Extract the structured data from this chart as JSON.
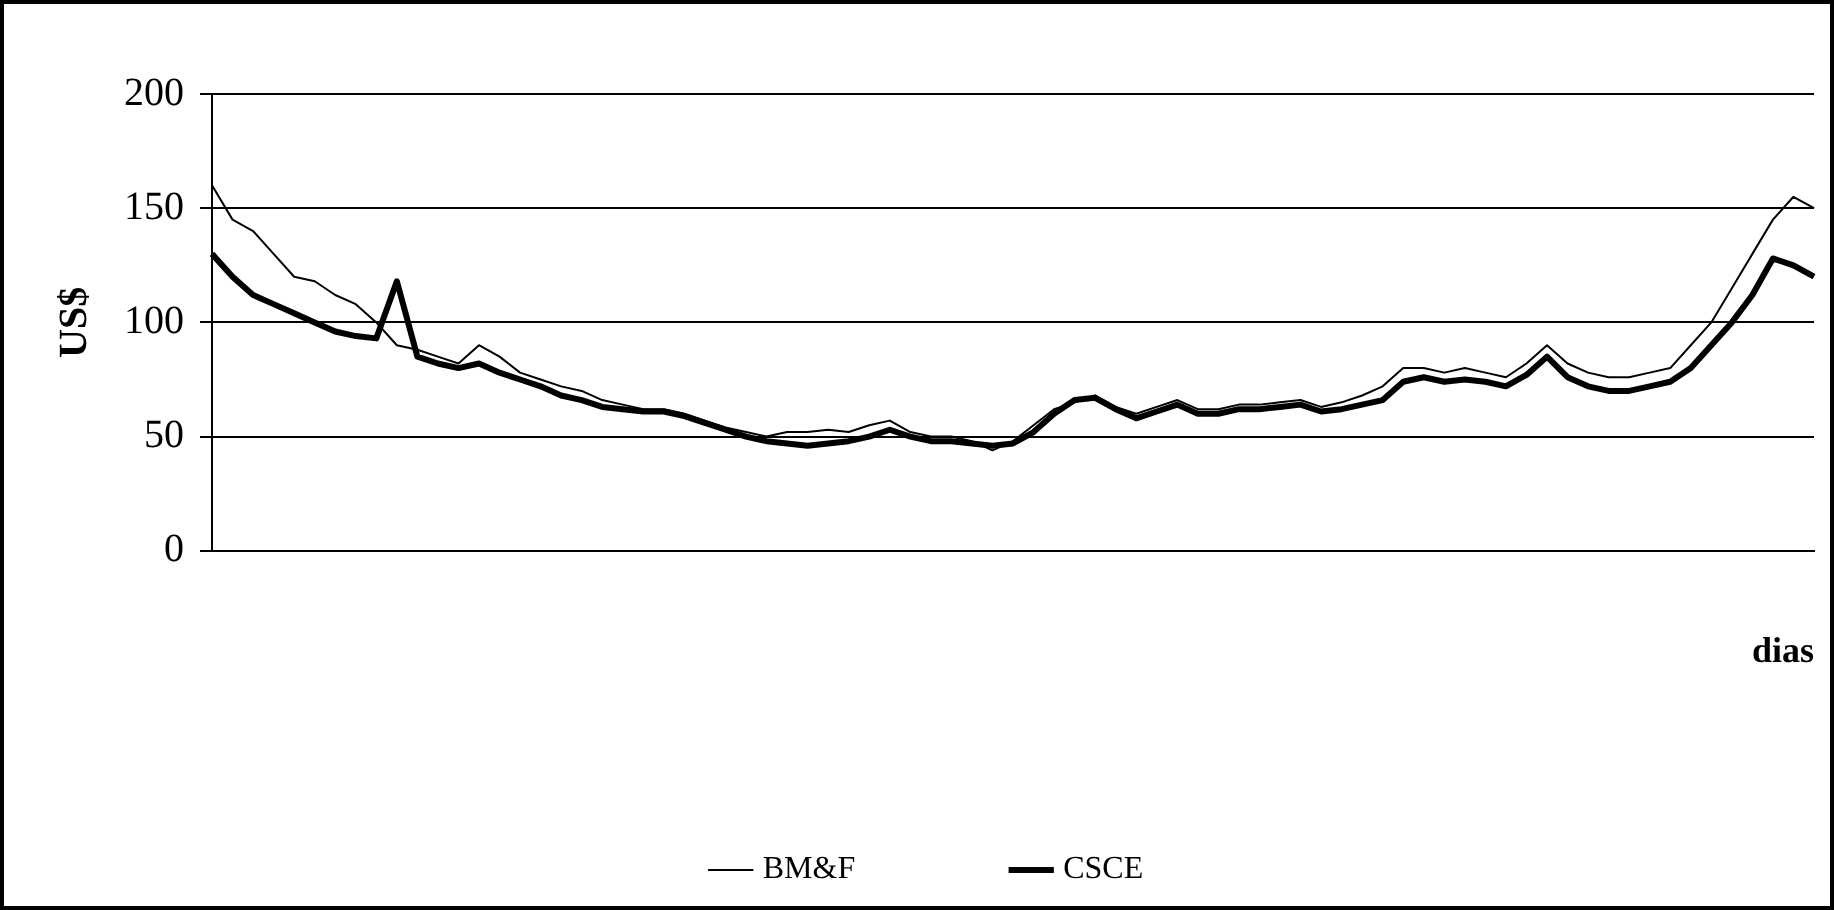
{
  "chart_data": {
    "type": "line",
    "ylabel": "US$",
    "xlabel": "dias",
    "categories": [
      null,
      null,
      null,
      null,
      null,
      null,
      null,
      null,
      null,
      null,
      null,
      null,
      null,
      null,
      null,
      null,
      null,
      null,
      null,
      null,
      null,
      null,
      null,
      null,
      null,
      null,
      null,
      null,
      null,
      null,
      null,
      null,
      null,
      null,
      null,
      null,
      null,
      null,
      null,
      null,
      null,
      null,
      null,
      null,
      null,
      null,
      null,
      null,
      null,
      null,
      null,
      null,
      null,
      null,
      null,
      null,
      null,
      null,
      null,
      null,
      null,
      null,
      null,
      null,
      null,
      null,
      null,
      null,
      null,
      null,
      null,
      null,
      null,
      null,
      null,
      null,
      null,
      null,
      null
    ],
    "series": [
      {
        "name": "BM&F",
        "color": "#000000",
        "values": [
          160,
          145,
          140,
          130,
          120,
          118,
          112,
          108,
          100,
          90,
          88,
          85,
          82,
          90,
          85,
          78,
          75,
          72,
          70,
          66,
          64,
          62,
          62,
          60,
          57,
          54,
          52,
          50,
          52,
          52,
          53,
          52,
          55,
          57,
          52,
          50,
          50,
          48,
          44,
          48,
          55,
          62,
          65,
          68,
          63,
          60,
          63,
          66,
          62,
          62,
          64,
          64,
          65,
          66,
          63,
          65,
          68,
          72,
          80,
          80,
          78,
          80,
          78,
          76,
          82,
          90,
          82,
          78,
          76,
          76,
          78,
          80,
          90,
          100,
          115,
          130,
          145,
          155,
          150
        ]
      },
      {
        "name": "CSCE",
        "color": "#000000",
        "values": [
          130,
          120,
          112,
          108,
          104,
          100,
          96,
          94,
          93,
          118,
          85,
          82,
          80,
          82,
          78,
          75,
          72,
          68,
          66,
          63,
          62,
          61,
          61,
          59,
          56,
          53,
          50,
          48,
          47,
          46,
          47,
          48,
          50,
          53,
          50,
          48,
          48,
          47,
          46,
          47,
          52,
          60,
          66,
          67,
          62,
          58,
          61,
          64,
          60,
          60,
          62,
          62,
          63,
          64,
          61,
          62,
          64,
          66,
          74,
          76,
          74,
          75,
          74,
          72,
          77,
          85,
          76,
          72,
          70,
          70,
          72,
          74,
          80,
          90,
          100,
          112,
          128,
          125,
          120
        ]
      }
    ],
    "ylim": [
      0,
      200
    ],
    "yticks": [
      0,
      50,
      100,
      150,
      200
    ],
    "grid": "y",
    "legend": "bottom",
    "marker": "none",
    "line_style": "solid"
  }
}
